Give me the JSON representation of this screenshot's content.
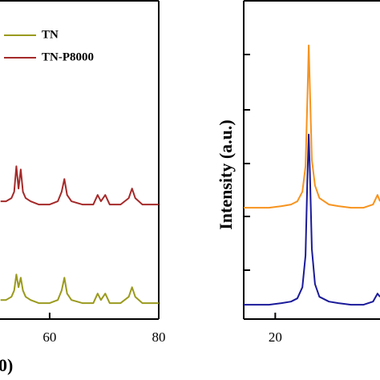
{
  "chart_data": [
    {
      "type": "line",
      "x_label": "0)",
      "x": [
        51,
        52,
        53,
        53.5,
        53.9,
        54.3,
        54.7,
        55.1,
        55.6,
        56.5,
        58,
        60,
        61.5,
        62.2,
        62.7,
        63.2,
        64,
        66,
        68,
        68.8,
        69.4,
        70.2,
        71,
        73,
        74.5,
        75.1,
        75.7,
        77,
        80
      ],
      "series": [
        {
          "name": "TN",
          "color": "#9a9a1e",
          "values": [
            6,
            6,
            7,
            9,
            14,
            10,
            13,
            9,
            7,
            6,
            5,
            5,
            6,
            9,
            13,
            8,
            6,
            5,
            5,
            8,
            6,
            8,
            5,
            5,
            7,
            10,
            7,
            5,
            5
          ]
        },
        {
          "name": "TN-P8000",
          "color": "#a52a2a",
          "values": [
            37,
            37,
            38,
            40,
            48,
            41,
            47,
            40,
            38,
            37,
            36,
            36,
            37,
            40,
            44,
            39,
            37,
            36,
            36,
            39,
            37,
            39,
            36,
            36,
            38,
            41,
            38,
            36,
            36
          ]
        }
      ],
      "xlim": [
        50.9,
        80
      ],
      "xticks": [
        60,
        80
      ],
      "ylim": [
        0,
        100
      ],
      "legend": "upper-left"
    },
    {
      "type": "line",
      "y_label": "Intensity (a.u.)",
      "x": [
        15,
        17,
        19,
        21,
        22.5,
        23.5,
        24.3,
        24.8,
        25.1,
        25.3,
        25.5,
        25.8,
        26.3,
        27,
        28.5,
        30,
        32,
        34,
        35.5,
        36.2,
        36.6
      ],
      "series": [
        {
          "color": "#f7931e",
          "values": [
            35,
            35,
            35,
            35.5,
            36,
            37,
            40,
            48,
            70,
            86,
            72,
            50,
            42,
            38,
            36,
            35.5,
            35,
            35,
            36,
            39,
            37
          ]
        },
        {
          "color": "#1a1a9a",
          "values": [
            4.5,
            4.5,
            4.5,
            5,
            5.5,
            6.5,
            10,
            20,
            45,
            58,
            46,
            22,
            11,
            7,
            5.5,
            5,
            4.5,
            4.5,
            5.5,
            8,
            7
          ]
        }
      ],
      "xlim": [
        15,
        36.6
      ],
      "xticks": [
        20
      ],
      "ylim": [
        0,
        100
      ]
    }
  ]
}
